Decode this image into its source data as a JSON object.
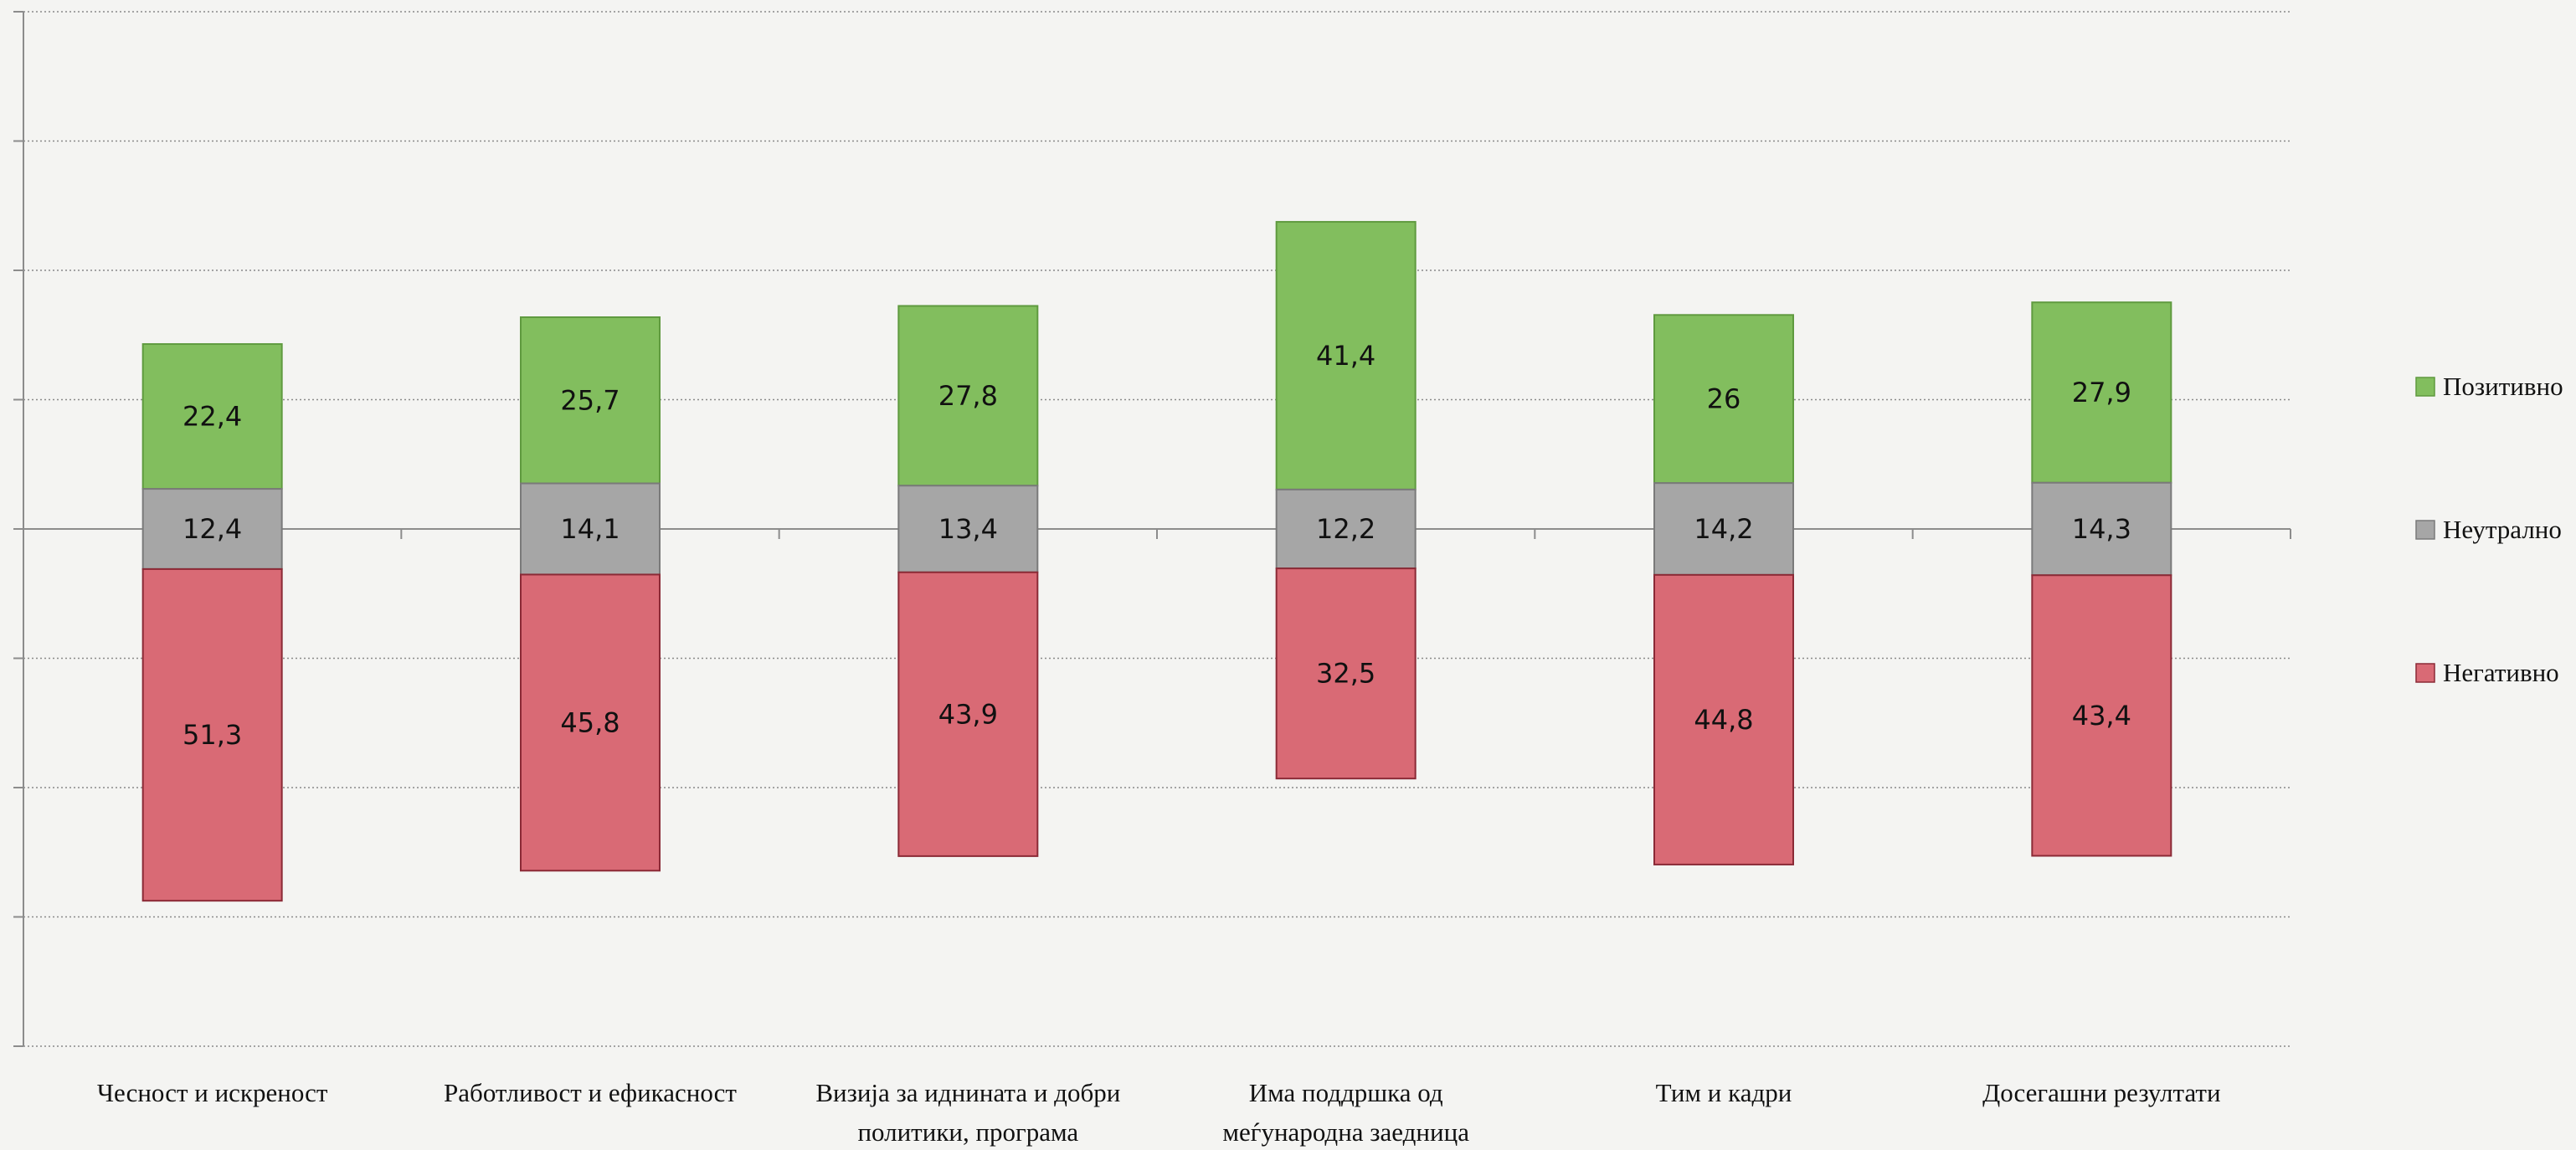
{
  "chart_data": {
    "type": "bar",
    "stacked": true,
    "diverging": true,
    "categories": [
      [
        "Чесност и искреност"
      ],
      [
        "Работливост и ефикасност"
      ],
      [
        "Визија за иднината и добри",
        "политики, програма"
      ],
      [
        "Има поддршка од",
        "меѓународна заедница"
      ],
      [
        "Тим и кадри"
      ],
      [
        "Досегашни резултати"
      ]
    ],
    "series": [
      {
        "name": "Позитивно",
        "color": "#82be5e",
        "stroke": "#5f9a3f",
        "values": [
          22.4,
          25.7,
          27.8,
          41.4,
          26,
          27.9
        ],
        "labels": [
          "22,4",
          "25,7",
          "27,8",
          "41,4",
          "26",
          "27,9"
        ]
      },
      {
        "name": "Неутрално",
        "color": "#a6a6a6",
        "stroke": "#7a7a7a",
        "values": [
          12.4,
          14.1,
          13.4,
          12.2,
          14.2,
          14.3
        ],
        "labels": [
          "12,4",
          "14,1",
          "13,4",
          "12,2",
          "14,2",
          "14,3"
        ]
      },
      {
        "name": "Негативно",
        "color": "#d96a75",
        "stroke": "#8b2a36",
        "values": [
          51.3,
          45.8,
          43.9,
          32.5,
          44.8,
          43.4
        ],
        "labels": [
          "51,3",
          "45,8",
          "43,9",
          "32,5",
          "44,8",
          "43,4"
        ]
      }
    ],
    "ylim": [
      -80,
      80
    ],
    "grid": true,
    "legend": "right",
    "neutral_centered_on_axis": true
  }
}
